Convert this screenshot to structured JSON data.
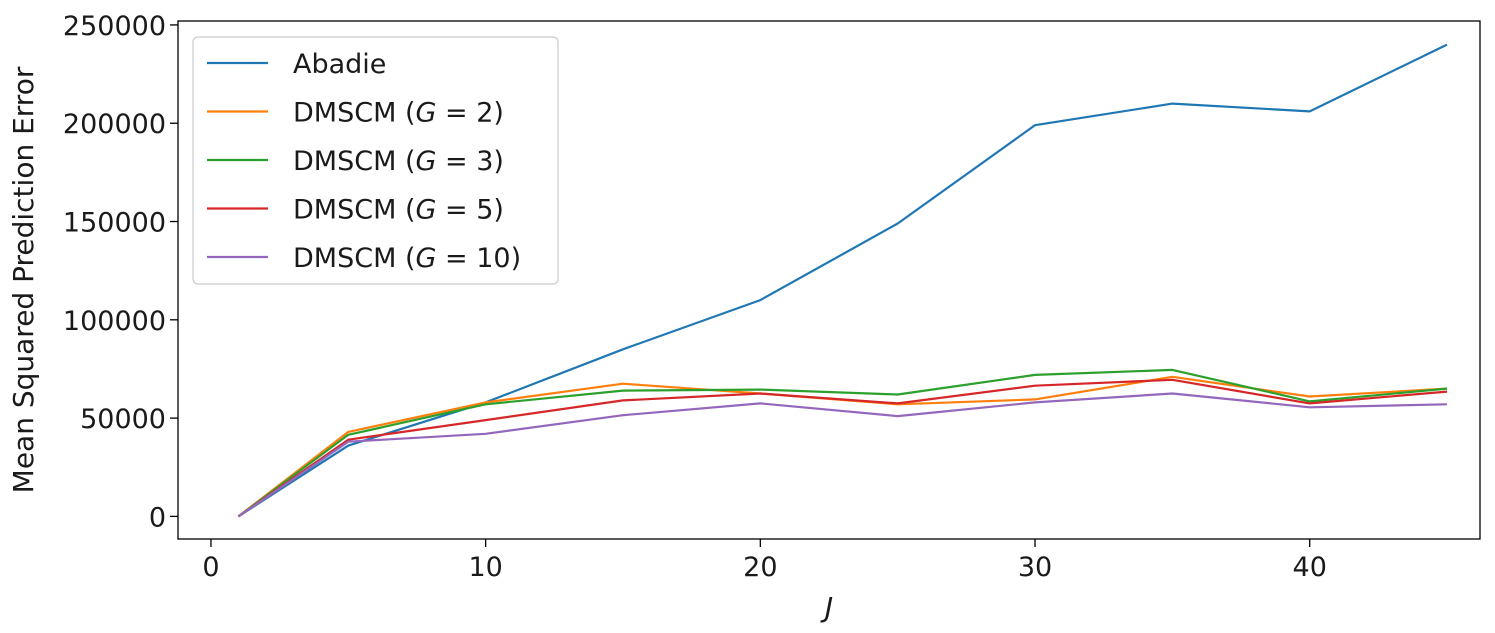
{
  "chart_data": {
    "type": "line",
    "title": "",
    "xlabel": "J",
    "ylabel": "Mean Squared Prediction Error",
    "xlim": [
      -1.2,
      46.2
    ],
    "ylim": [
      -11500,
      252000
    ],
    "xticks": [
      0,
      10,
      20,
      30,
      40
    ],
    "xtick_labels": [
      "0",
      "10",
      "20",
      "30",
      "40"
    ],
    "yticks": [
      0,
      50000,
      100000,
      150000,
      200000,
      250000
    ],
    "ytick_labels": [
      "0",
      "50000",
      "100000",
      "150000",
      "200000",
      "250000"
    ],
    "grid": false,
    "legend_position": "top-left",
    "x": [
      1,
      5,
      10,
      15,
      20,
      25,
      30,
      35,
      40,
      45
    ],
    "series": [
      {
        "name": "Abadie",
        "label_parts": [
          "Abadie"
        ],
        "color": "#1f77b4",
        "values": [
          0,
          36000,
          58000,
          85000,
          110000,
          149000,
          199000,
          210000,
          206000,
          240000
        ]
      },
      {
        "name": "DMSCM (G=2)",
        "label_parts": [
          "DMSCM (",
          "G",
          " = 2)"
        ],
        "color": "#ff7f0e",
        "values": [
          0,
          43000,
          58000,
          67500,
          62500,
          57000,
          59500,
          71000,
          61000,
          65000
        ]
      },
      {
        "name": "DMSCM (G=3)",
        "label_parts": [
          "DMSCM (",
          "G",
          " = 3)"
        ],
        "color": "#2ca02c",
        "values": [
          0,
          41500,
          57000,
          64000,
          64500,
          62000,
          72000,
          74500,
          58500,
          65000
        ]
      },
      {
        "name": "DMSCM (G=5)",
        "label_parts": [
          "DMSCM (",
          "G",
          " = 5)"
        ],
        "color": "#d62728",
        "values": [
          0,
          39000,
          49000,
          59000,
          62500,
          57500,
          66500,
          69500,
          57500,
          63500
        ]
      },
      {
        "name": "DMSCM (G=10)",
        "label_parts": [
          "DMSCM (",
          "G",
          " = 10)"
        ],
        "color": "#9467bd",
        "values": [
          0,
          38000,
          42000,
          51500,
          57500,
          51000,
          58000,
          62500,
          55500,
          57000
        ]
      }
    ]
  }
}
